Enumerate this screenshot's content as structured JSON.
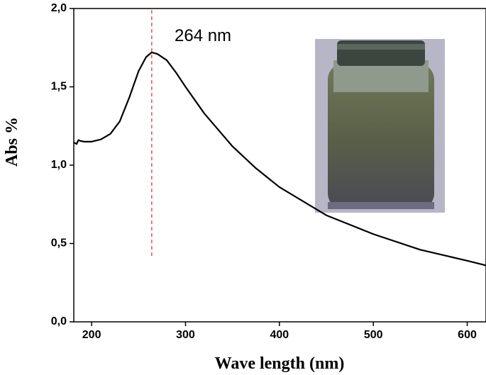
{
  "chart_data": {
    "type": "line",
    "x_label": "Wave length (nm)",
    "y_label": "Abs %",
    "annotation": "264 nm",
    "x": [
      181,
      184,
      186,
      188,
      192,
      200,
      210,
      220,
      230,
      240,
      250,
      258,
      264,
      270,
      280,
      290,
      300,
      320,
      350,
      375,
      400,
      450,
      500,
      550,
      600,
      620
    ],
    "values": [
      1.145,
      1.135,
      1.16,
      1.155,
      1.15,
      1.15,
      1.165,
      1.2,
      1.28,
      1.43,
      1.6,
      1.69,
      1.72,
      1.71,
      1.67,
      1.59,
      1.5,
      1.33,
      1.12,
      0.98,
      0.86,
      0.68,
      0.56,
      0.46,
      0.39,
      0.36
    ],
    "color": "#000000",
    "vline": {
      "x": 264,
      "y": [
        0.42,
        2.0
      ],
      "color": "#e8504f"
    },
    "xlim": [
      181,
      620
    ],
    "ylim": [
      0,
      2.0
    ],
    "xticks": [
      200,
      300,
      400,
      500,
      600
    ],
    "yticks": [
      {
        "value": 0,
        "label": "0,0"
      },
      {
        "value": 0.5,
        "label": "0,5"
      },
      {
        "value": 1.0,
        "label": "1,0"
      },
      {
        "value": 1.5,
        "label": "1,5"
      },
      {
        "value": 2.0,
        "label": "2,0"
      }
    ]
  }
}
